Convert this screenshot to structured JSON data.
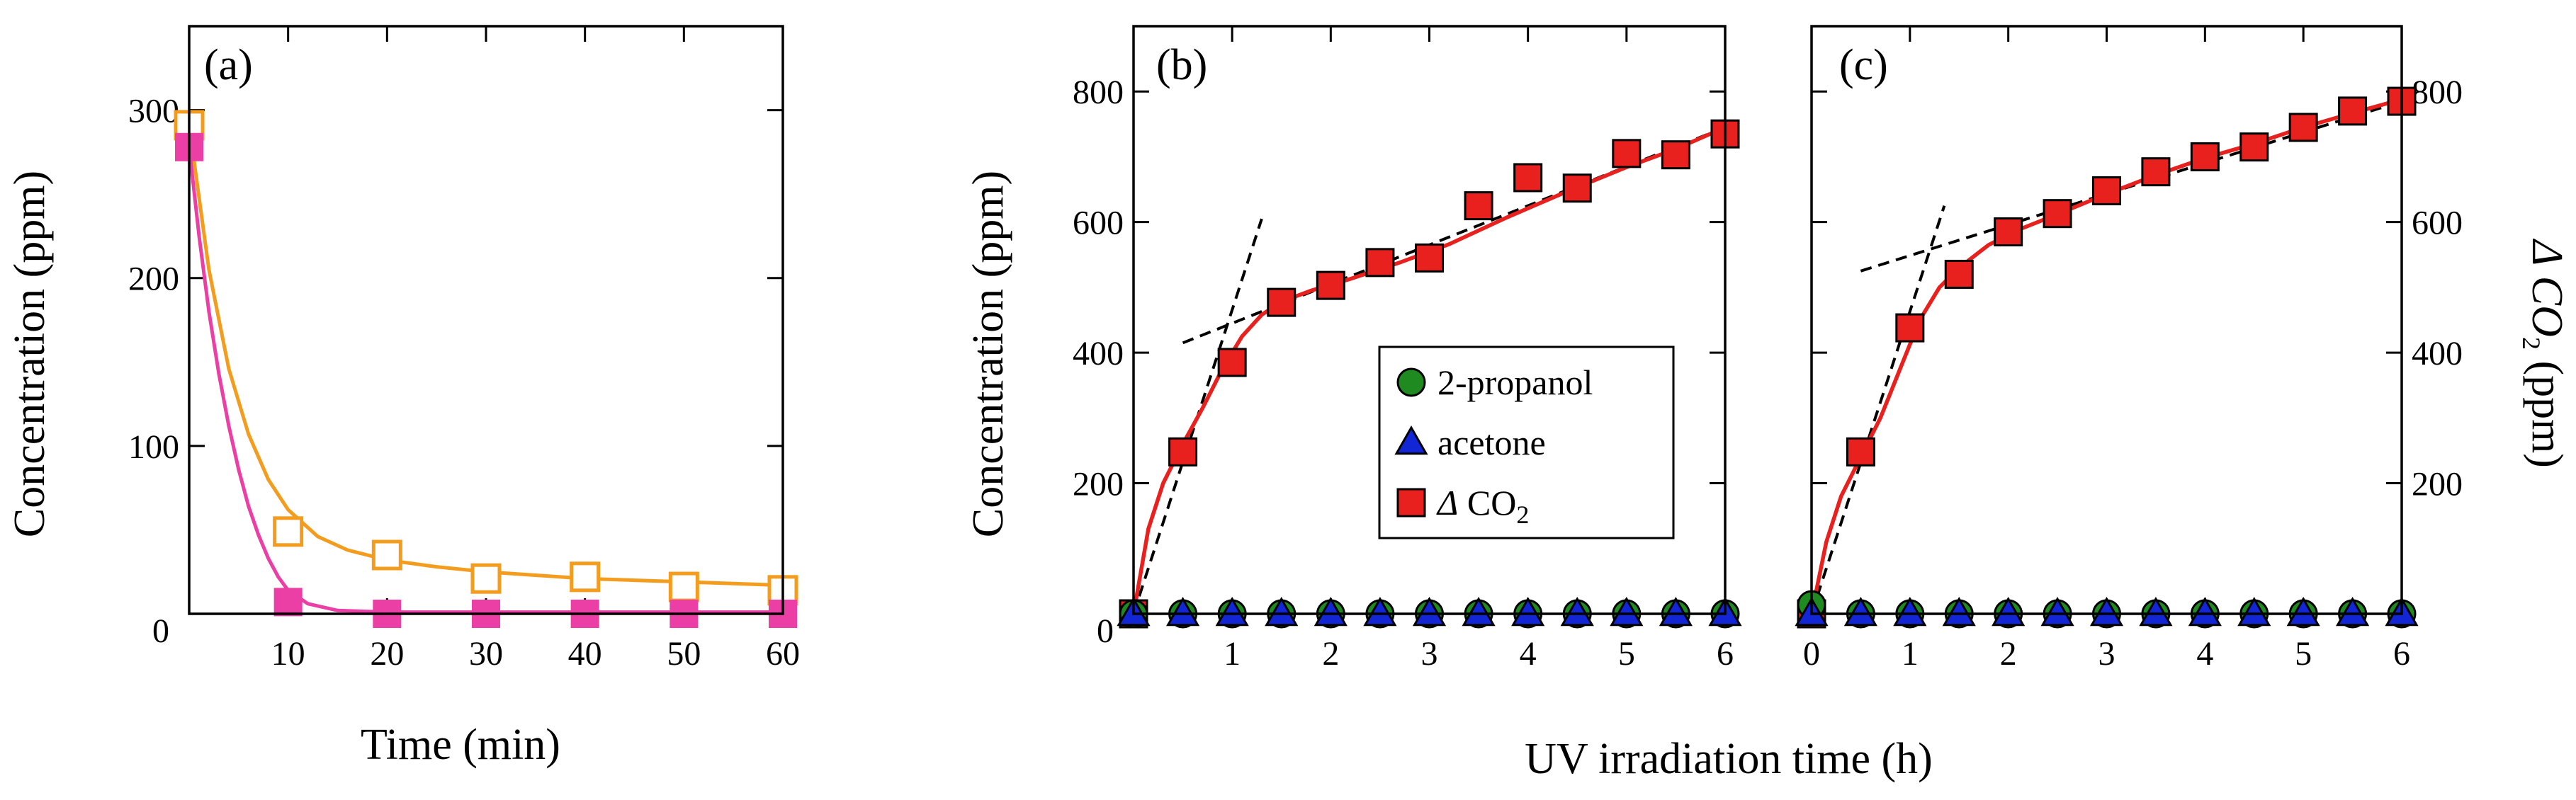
{
  "figure": {
    "shared_xlabel": "UV irradiation time (h)"
  },
  "colors": {
    "orange": "#f39c1e",
    "magenta": "#ec3fa6",
    "red_fill": "#e8201e",
    "red_line": "#e8201e",
    "green": "#1f8a1f",
    "blue": "#1226d6",
    "black": "#000000"
  },
  "chart_data": [
    {
      "id": "a",
      "type": "scatter",
      "panel_label": "(a)",
      "xlabel": "Time (min)",
      "ylabel": "Concentration (ppm)",
      "xlim": [
        0,
        60
      ],
      "ylim": [
        0,
        350
      ],
      "xticks": [
        10,
        20,
        30,
        40,
        50,
        60
      ],
      "yticks": [
        0,
        100,
        200,
        300
      ],
      "series": [
        {
          "name": "open squares",
          "marker": "open-square",
          "color": "#f39c1e",
          "x": [
            0,
            10,
            20,
            30,
            40,
            50,
            60
          ],
          "y": [
            291,
            49,
            35,
            21,
            22,
            16,
            14
          ]
        },
        {
          "name": "filled squares",
          "marker": "filled-square",
          "color": "#ec3fa6",
          "x": [
            0,
            10,
            20,
            30,
            40,
            50,
            60
          ],
          "y": [
            278,
            7,
            0,
            0,
            0,
            0,
            0
          ]
        }
      ],
      "fits": [
        {
          "name": "orange fit",
          "color": "#f39c1e",
          "x": [
            0,
            2,
            4,
            6,
            8,
            10,
            13,
            16,
            20,
            25,
            30,
            35,
            40,
            45,
            50,
            55,
            60
          ],
          "y": [
            291,
            205,
            146,
            107,
            80,
            62,
            46,
            38,
            32,
            28,
            25,
            23,
            21,
            20,
            19,
            18,
            17
          ]
        },
        {
          "name": "magenta fit",
          "color": "#ec3fa6",
          "x": [
            0,
            1,
            2,
            3,
            4,
            5,
            6,
            7,
            8,
            9,
            10,
            12,
            15,
            20,
            30,
            40,
            50,
            60
          ],
          "y": [
            278,
            225,
            180,
            143,
            112,
            86,
            64,
            47,
            33,
            22,
            14,
            6,
            2,
            1,
            1,
            1,
            1,
            1
          ]
        }
      ]
    },
    {
      "id": "b",
      "type": "scatter",
      "panel_label": "(b)",
      "ylabel": "Concentration (ppm)",
      "xlim": [
        0,
        6
      ],
      "ylim": [
        0,
        900
      ],
      "xticks": [
        1,
        2,
        3,
        4,
        5,
        6
      ],
      "yticks": [
        200,
        400,
        600,
        800
      ],
      "series": [
        {
          "name": "ΔCO2",
          "marker": "filled-square",
          "color": "#e8201e",
          "x": [
            0,
            0.5,
            1,
            1.5,
            2,
            2.5,
            3,
            3.5,
            4,
            4.5,
            5,
            5.5,
            6
          ],
          "y": [
            0,
            248,
            385,
            477,
            503,
            538,
            545,
            625,
            668,
            652,
            705,
            703,
            735
          ]
        },
        {
          "name": "2-propanol",
          "marker": "filled-circle",
          "color": "#1f8a1f",
          "x": [
            0,
            0.5,
            1,
            1.5,
            2,
            2.5,
            3,
            3.5,
            4,
            4.5,
            5,
            5.5,
            6
          ],
          "y": [
            0,
            0,
            0,
            0,
            0,
            0,
            0,
            0,
            0,
            0,
            0,
            0,
            0
          ]
        },
        {
          "name": "acetone",
          "marker": "filled-triangle",
          "color": "#1226d6",
          "x": [
            0,
            0.5,
            1,
            1.5,
            2,
            2.5,
            3,
            3.5,
            4,
            4.5,
            5,
            5.5,
            6
          ],
          "y": [
            0,
            0,
            0,
            0,
            0,
            0,
            0,
            0,
            0,
            0,
            0,
            0,
            0
          ]
        }
      ],
      "fit": {
        "color": "#e8201e",
        "x": [
          0,
          0.15,
          0.3,
          0.5,
          0.7,
          0.9,
          1.1,
          1.3,
          1.5,
          1.8,
          2.2,
          2.7,
          3.2,
          3.8,
          4.4,
          5.0,
          5.5,
          6.0
        ],
        "y": [
          0,
          130,
          200,
          260,
          315,
          375,
          425,
          458,
          478,
          495,
          513,
          538,
          566,
          608,
          647,
          684,
          712,
          745
        ]
      },
      "trend_lines": [
        {
          "x": [
            0,
            1.3
          ],
          "y": [
            0,
            605
          ]
        },
        {
          "x": [
            0.5,
            6
          ],
          "y": [
            415,
            745
          ]
        }
      ],
      "legend": {
        "position": "center",
        "entries": [
          {
            "label": "2-propanol",
            "marker": "filled-circle",
            "color": "#1f8a1f"
          },
          {
            "label": "acetone",
            "marker": "filled-triangle",
            "color": "#1226d6"
          },
          {
            "label": "Δ CO",
            "sub": "2",
            "marker": "filled-square",
            "color": "#e8201e"
          }
        ]
      }
    },
    {
      "id": "c",
      "type": "scatter",
      "panel_label": "(c)",
      "ylabel_right": "Δ CO",
      "ylabel_right_sub": "2",
      "ylabel_right_unit": " (ppm)",
      "xlim": [
        0,
        6
      ],
      "ylim": [
        0,
        900
      ],
      "xticks": [
        0,
        1,
        2,
        3,
        4,
        5,
        6
      ],
      "yticks": [
        200,
        400,
        600,
        800
      ],
      "series": [
        {
          "name": "ΔCO2",
          "marker": "filled-square",
          "color": "#e8201e",
          "x": [
            0,
            0.5,
            1,
            1.5,
            2,
            2.5,
            3,
            3.5,
            4,
            4.5,
            5,
            5.5,
            6
          ],
          "y": [
            0,
            248,
            438,
            520,
            585,
            613,
            648,
            677,
            700,
            715,
            745,
            770,
            785
          ]
        },
        {
          "name": "2-propanol",
          "marker": "filled-circle",
          "color": "#1f8a1f",
          "x": [
            0,
            0.5,
            1,
            1.5,
            2,
            2.5,
            3,
            3.5,
            4,
            4.5,
            5,
            5.5,
            6
          ],
          "y": [
            14,
            0,
            0,
            0,
            0,
            0,
            0,
            0,
            0,
            0,
            0,
            0,
            0
          ]
        },
        {
          "name": "acetone",
          "marker": "filled-triangle",
          "color": "#1226d6",
          "x": [
            0,
            0.5,
            1,
            1.5,
            2,
            2.5,
            3,
            3.5,
            4,
            4.5,
            5,
            5.5,
            6
          ],
          "y": [
            0,
            0,
            0,
            0,
            0,
            0,
            0,
            0,
            0,
            0,
            0,
            0,
            0
          ]
        }
      ],
      "fit": {
        "color": "#e8201e",
        "x": [
          0,
          0.15,
          0.3,
          0.5,
          0.7,
          0.9,
          1.1,
          1.3,
          1.5,
          1.8,
          2.1,
          2.5,
          3.0,
          3.5,
          4.0,
          4.5,
          5.0,
          5.5,
          6.0
        ],
        "y": [
          0,
          110,
          180,
          240,
          300,
          375,
          450,
          500,
          530,
          565,
          588,
          612,
          643,
          672,
          698,
          720,
          745,
          767,
          788
        ]
      },
      "trend_lines": [
        {
          "x": [
            0,
            1.35
          ],
          "y": [
            0,
            625
          ]
        },
        {
          "x": [
            0.5,
            6
          ],
          "y": [
            525,
            785
          ]
        }
      ]
    }
  ]
}
